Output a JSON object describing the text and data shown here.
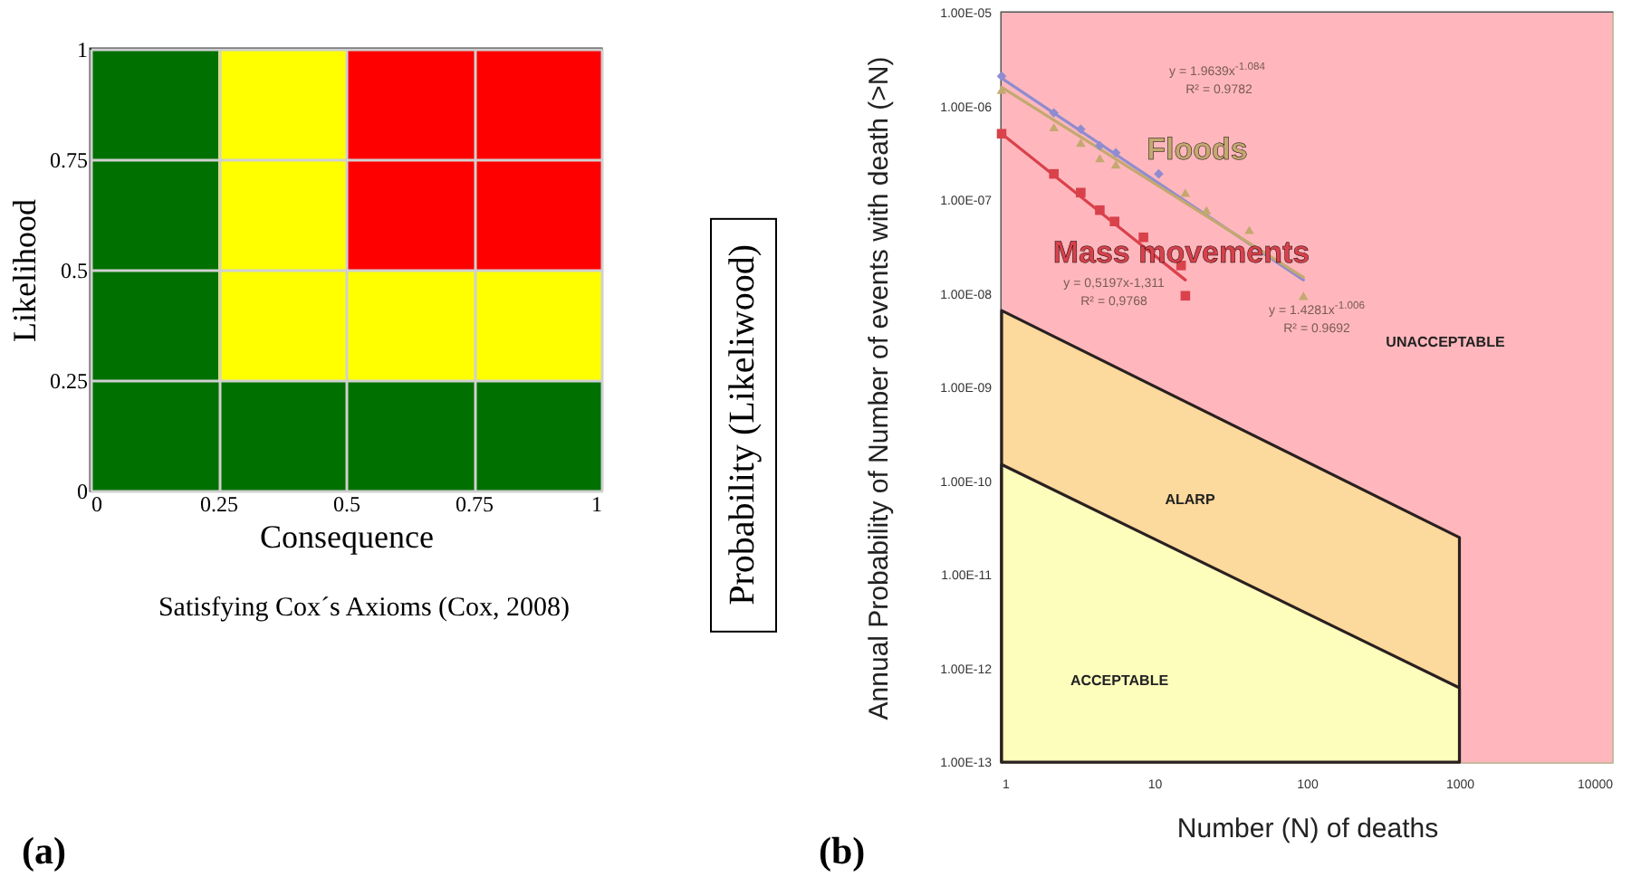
{
  "chart_data": [
    {
      "type": "bar",
      "stacked": true,
      "xlabel": "Consequence",
      "ylabel": "Likelihood",
      "x": [
        0.125,
        0.375,
        0.625,
        0.875
      ],
      "xlim": [
        0,
        1
      ],
      "ylim": [
        0,
        1
      ],
      "xticks": [
        0,
        0.25,
        0.5,
        0.75,
        1
      ],
      "yticks": [
        0,
        0.25,
        0.5,
        0.75,
        1
      ],
      "grid": true,
      "series": [
        {
          "color": "#007000",
          "values": [
            1,
            0.25,
            0.25,
            0.25
          ]
        },
        {
          "color": "#ffff00",
          "values": [
            null,
            0.75,
            0.25,
            0.25
          ]
        },
        {
          "color": "#ff0000",
          "values": [
            null,
            null,
            0.5,
            0.5
          ]
        }
      ],
      "annotations": [
        "Satisfying Cox´s Axioms (Cox, 2008)",
        "(a)"
      ]
    },
    {
      "type": "scatter",
      "xlabel": "Number (N) of deaths",
      "ylabel": "Annual Probability of Number of events with  death (>N)",
      "log": "xy",
      "grid": true,
      "xlim": [
        1,
        10000
      ],
      "xticks": [
        1,
        10,
        100,
        1000,
        10000
      ],
      "ylim": [
        1e-13,
        1e-05
      ],
      "yticks": [
        {
          "value": 1e-13,
          "label": "1.00E-13"
        },
        {
          "value": 1e-12,
          "label": "1.00E-12"
        },
        {
          "value": 1e-11,
          "label": "1.00E-11"
        },
        {
          "value": 1e-10,
          "label": "1.00E-10"
        },
        {
          "value": 1e-09,
          "label": "1.00E-09"
        },
        {
          "value": 1e-08,
          "label": "1.00E-08"
        },
        {
          "value": 1e-07,
          "label": "1.00E-07"
        },
        {
          "value": 1e-06,
          "label": "1.00E-06"
        },
        {
          "value": 1e-05,
          "label": "1.00E-05"
        }
      ],
      "bands": [
        {
          "axis": "x",
          "from": 1,
          "to": 10000,
          "color": "#ffb7bd"
        }
      ],
      "series": [
        {
          "type": "area",
          "color": "#fcd99c",
          "x": [
            1,
            1000
          ],
          "values": [
            6.6e-09,
            2.5e-11
          ]
        },
        {
          "type": "area",
          "color": "#fdfdbc",
          "x": [
            1,
            1000
          ],
          "values": [
            1.5e-10,
            6.2e-13
          ]
        },
        {
          "type": "line",
          "color": "#8f8cd0",
          "x": [
            1,
            95
          ],
          "values": [
            2e-06,
            1.4e-08
          ]
        },
        {
          "type": "line",
          "color": "#c4a870",
          "x": [
            1,
            95
          ],
          "values": [
            1.6e-06,
            1.5e-08
          ]
        },
        {
          "type": "line",
          "color": "#d9414b",
          "x": [
            1,
            16
          ],
          "values": [
            5.1e-07,
            1.4e-08
          ]
        },
        {
          "type": "scatter",
          "marker": "diamond",
          "color": "#8f8cd0",
          "x": [
            1,
            2.2,
            3.3,
            4.4,
            5.6,
            10.7
          ],
          "values": [
            2.1e-06,
            8.5e-07,
            5.7e-07,
            3.8e-07,
            3.2e-07,
            1.9e-07
          ]
        },
        {
          "type": "scatter",
          "marker": "triangle",
          "name": "Floods",
          "color": "#c4a870",
          "x": [
            1,
            2.2,
            3.3,
            4.4,
            5.6,
            16,
            22,
            42,
            95
          ],
          "values": [
            1.5e-06,
            6e-07,
            4.1e-07,
            2.8e-07,
            2.4e-07,
            1.2e-07,
            7.8e-08,
            4.8e-08,
            9.5e-09
          ]
        },
        {
          "type": "scatter",
          "marker": "square",
          "name": "Mass movements",
          "color": "#d9414b",
          "x": [
            1,
            2.2,
            3.3,
            4.4,
            5.5,
            8.5,
            15,
            16
          ],
          "values": [
            5.1e-07,
            1.9e-07,
            1.2e-07,
            7.8e-08,
            5.9e-08,
            4e-08,
            2e-08,
            9.5e-09
          ]
        }
      ],
      "annotations": [
        "y = 1.9639x$^{-1.084}$",
        "R² = 0.9782",
        "y = 0,5197x-1,311",
        "R² = 0,9768",
        "y = 1.4281x$^{-1.006}$",
        "R² = 0.9692",
        "UNACCEPTABLE",
        "ALARP",
        "ACCEPTABLE",
        "(b)",
        "Probability (Likeliwood)"
      ]
    }
  ]
}
